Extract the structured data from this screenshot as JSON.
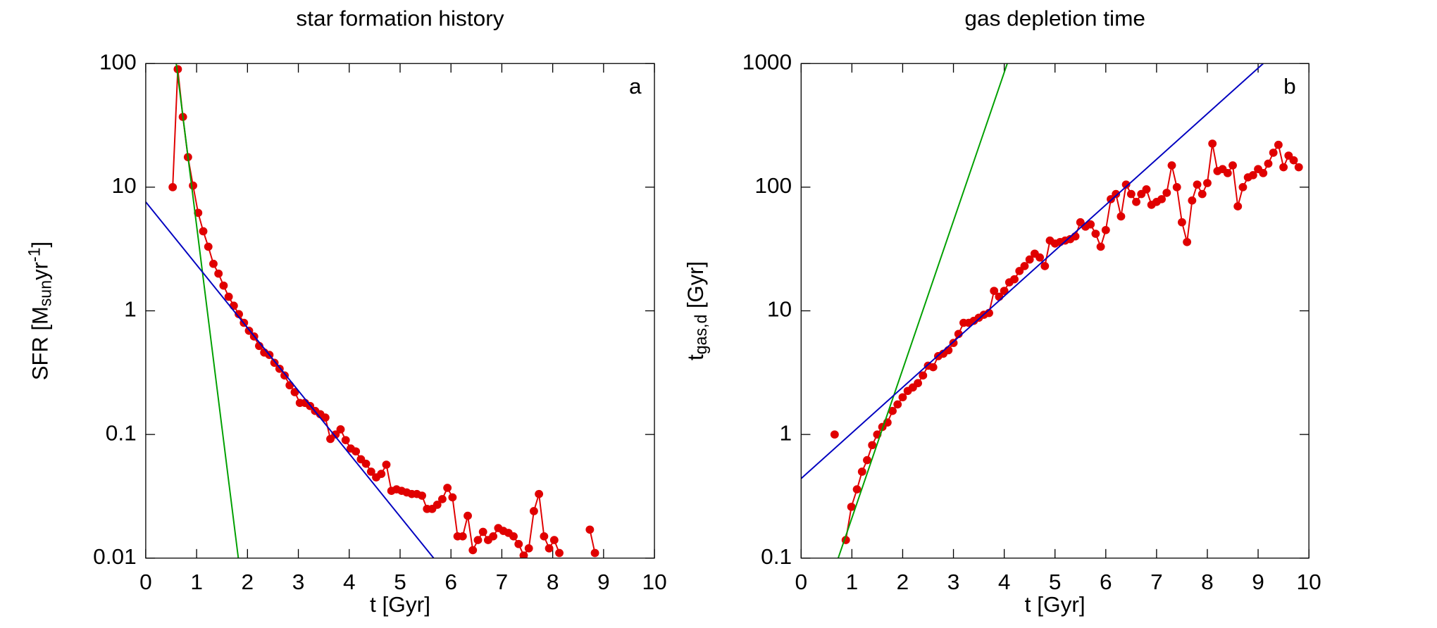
{
  "chart_data": [
    {
      "type": "line",
      "title": "star formation history",
      "annotation": "a",
      "xlabel": "t [Gyr]",
      "ylabel": {
        "start": "SFR [M",
        "sub": "sun",
        "mid": "yr",
        "sup": "-1",
        "end": "]"
      },
      "xscale": "linear",
      "yscale": "log",
      "xlim": [
        0,
        10
      ],
      "ylim": [
        0.01,
        100
      ],
      "xticks": [
        0,
        1,
        2,
        3,
        4,
        5,
        6,
        7,
        8,
        9,
        10
      ],
      "yticks": [
        0.01,
        0.1,
        1,
        10,
        100
      ],
      "series": [
        {
          "color": "#e00000",
          "markers": true,
          "x": [
            0.53,
            0.63,
            0.73,
            0.83,
            0.93,
            1.03,
            1.13,
            1.23,
            1.33,
            1.43,
            1.53,
            1.63,
            1.73,
            1.83,
            1.93,
            2.03,
            2.13,
            2.23,
            2.33,
            2.43,
            2.53,
            2.63,
            2.73,
            2.83,
            2.93,
            3.03,
            3.13,
            3.23,
            3.33,
            3.43,
            3.53,
            3.63,
            3.73,
            3.83,
            3.93,
            4.03,
            4.13,
            4.23,
            4.33,
            4.43,
            4.53,
            4.63,
            4.73,
            4.83,
            4.93,
            5.03,
            5.13,
            5.23,
            5.33,
            5.43,
            5.53,
            5.63,
            5.73,
            5.83,
            5.93,
            6.03,
            6.13,
            6.23,
            6.33,
            6.43,
            6.53,
            6.63,
            6.73,
            6.83,
            6.93,
            7.03,
            7.13,
            7.23,
            7.33,
            7.43,
            7.53,
            7.63,
            7.73,
            7.83,
            7.93,
            8.03,
            8.13,
            8.23,
            8.33,
            8.43,
            8.53,
            8.63,
            8.73,
            8.83
          ],
          "values": [
            10,
            90,
            37,
            17.5,
            10.3,
            6.2,
            4.4,
            3.3,
            2.4,
            2.0,
            1.6,
            1.3,
            1.1,
            0.94,
            0.8,
            0.69,
            0.62,
            0.52,
            0.46,
            0.44,
            0.38,
            0.34,
            0.3,
            0.25,
            0.22,
            0.18,
            0.18,
            0.17,
            0.155,
            0.146,
            0.137,
            0.092,
            0.1,
            0.11,
            0.09,
            0.077,
            0.073,
            0.063,
            0.058,
            0.05,
            0.045,
            0.048,
            0.057,
            0.035,
            0.036,
            0.035,
            0.034,
            0.033,
            0.033,
            0.032,
            0.025,
            0.025,
            0.027,
            0.03,
            0.037,
            0.031,
            0.015,
            0.015,
            0.022,
            0.0116,
            0.014,
            0.0163,
            0.014,
            0.015,
            0.0175,
            0.0166,
            0.016,
            0.015,
            0.013,
            0.0105,
            0.012,
            0.024,
            0.033,
            0.015,
            0.012,
            0.014,
            0.011,
            null,
            null,
            null,
            null,
            null,
            0.017,
            0.011
          ]
        },
        {
          "color": "#00a000",
          "markers": false,
          "x": [
            0.6,
            1.82
          ],
          "values": [
            100,
            0.01
          ]
        },
        {
          "color": "#0000c0",
          "markers": false,
          "x": [
            0,
            5.66
          ],
          "values": [
            7.6,
            0.01
          ]
        }
      ]
    },
    {
      "type": "line",
      "title": "gas depletion time",
      "annotation": "b",
      "xlabel": "t [Gyr]",
      "ylabel": {
        "start": "t",
        "sub": "gas,d",
        "end": " [Gyr]"
      },
      "xscale": "linear",
      "yscale": "log",
      "xlim": [
        0,
        10
      ],
      "ylim": [
        0.1,
        1000
      ],
      "xticks": [
        0,
        1,
        2,
        3,
        4,
        5,
        6,
        7,
        8,
        9,
        10
      ],
      "yticks": [
        0.1,
        1,
        10,
        100,
        1000
      ],
      "series": [
        {
          "color": "#e00000",
          "markers": true,
          "x": [
            0.66,
            0.77,
            0.88,
            0.99,
            1.1,
            1.2,
            1.3,
            1.4,
            1.5,
            1.6,
            1.7,
            1.8,
            1.9,
            2.0,
            2.1,
            2.2,
            2.3,
            2.4,
            2.5,
            2.6,
            2.7,
            2.8,
            2.9,
            3.0,
            3.1,
            3.2,
            3.3,
            3.4,
            3.5,
            3.6,
            3.7,
            3.8,
            3.9,
            4.0,
            4.1,
            4.2,
            4.3,
            4.4,
            4.5,
            4.6,
            4.7,
            4.8,
            4.9,
            5.0,
            5.1,
            5.2,
            5.3,
            5.4,
            5.5,
            5.6,
            5.7,
            5.8,
            5.9,
            6.0,
            6.1,
            6.2,
            6.3,
            6.4,
            6.5,
            6.6,
            6.7,
            6.8,
            6.9,
            7.0,
            7.1,
            7.2,
            7.3,
            7.4,
            7.5,
            7.6,
            7.7,
            7.8,
            7.9,
            8.0,
            8.1,
            8.2,
            8.3,
            8.4,
            8.5,
            8.6,
            8.7,
            8.8,
            8.9,
            9.0,
            9.1,
            9.2,
            9.3,
            9.4,
            9.5,
            9.6,
            9.7,
            9.8
          ],
          "values": [
            1.0,
            null,
            0.14,
            0.26,
            0.36,
            0.5,
            0.62,
            0.82,
            1.0,
            1.15,
            1.25,
            1.55,
            1.75,
            2.0,
            2.25,
            2.4,
            2.6,
            3.0,
            3.6,
            3.5,
            4.3,
            4.5,
            4.8,
            5.5,
            6.5,
            8.0,
            8.0,
            8.3,
            8.8,
            9.3,
            9.6,
            14.5,
            13,
            14.5,
            17,
            18,
            21,
            23,
            26,
            29,
            27,
            23,
            37,
            35,
            36,
            37,
            38,
            40,
            52,
            48,
            50,
            42,
            33,
            45,
            80,
            88,
            58,
            105,
            88,
            76,
            88,
            96,
            72,
            76,
            80,
            90,
            150,
            100,
            52,
            36,
            78,
            105,
            88,
            108,
            225,
            135,
            140,
            130,
            150,
            70,
            100,
            120,
            125,
            140,
            130,
            155,
            190,
            220,
            145,
            180,
            165,
            145
          ]
        },
        {
          "color": "#00a000",
          "markers": false,
          "x": [
            0.73,
            4.06
          ],
          "values": [
            0.1,
            1000
          ]
        },
        {
          "color": "#0000c0",
          "markers": false,
          "x": [
            0,
            9.1
          ],
          "values": [
            0.44,
            1000
          ]
        }
      ]
    }
  ]
}
